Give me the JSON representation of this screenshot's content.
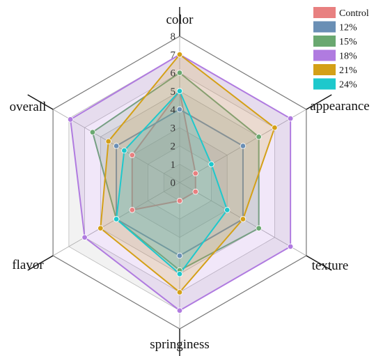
{
  "chart_data": {
    "type": "radar",
    "axes": [
      "color",
      "appearance",
      "texture",
      "springiness",
      "flavor",
      "overall"
    ],
    "rlim": [
      0,
      8
    ],
    "ticks": [
      "0",
      "1",
      "2",
      "3",
      "4",
      "5",
      "6",
      "7",
      "8"
    ],
    "grid": true,
    "legend_position": "top-right",
    "series": [
      {
        "name": "Control",
        "color": "#e88080",
        "values": [
          5,
          1,
          1,
          1,
          3,
          3
        ]
      },
      {
        "name": "12%",
        "color": "#6a8fb5",
        "values": [
          4,
          4,
          4,
          4,
          4,
          4
        ]
      },
      {
        "name": "15%",
        "color": "#6aa870",
        "values": [
          6,
          5,
          5,
          4.8,
          4,
          5.5
        ]
      },
      {
        "name": "18%",
        "color": "#b07be0",
        "values": [
          7,
          7,
          7,
          7,
          6,
          6.9
        ]
      },
      {
        "name": "21%",
        "color": "#d4a017",
        "values": [
          7,
          6,
          4,
          6,
          5,
          4.5
        ]
      },
      {
        "name": "24%",
        "color": "#1ec8cc",
        "values": [
          5,
          2,
          3,
          5,
          4,
          3.5
        ]
      }
    ]
  }
}
